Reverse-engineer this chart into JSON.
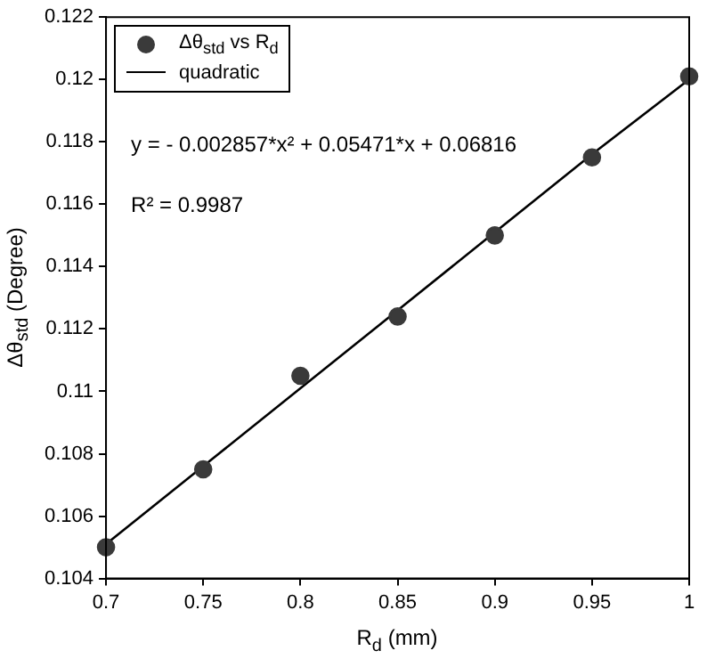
{
  "chart_data": {
    "type": "scatter",
    "xlabel": "R$_{d}$ (mm)",
    "ylabel": "Δθ$_{std}$  (Degree)",
    "x": [
      0.7,
      0.75,
      0.8,
      0.85,
      0.9,
      0.95,
      1.0
    ],
    "series": [
      {
        "name": "Δθ$_{std}$ vs R$_{d}$",
        "color": "#3a3a3a",
        "marker": "circle",
        "values": [
          0.105,
          0.1075,
          0.1105,
          0.1124,
          0.115,
          0.1175,
          0.1201
        ]
      },
      {
        "name": "quadratic",
        "type": "line",
        "color": "#000000",
        "marker": "none",
        "line_style": "solid",
        "values": [
          0.1051,
          0.1076,
          0.1101,
          0.1126,
          0.1151,
          0.1176,
          0.12
        ]
      }
    ],
    "xlim": [
      0.7,
      1
    ],
    "xticks": [
      0.7,
      0.75,
      0.8,
      0.85,
      0.9,
      0.95,
      1
    ],
    "ylim": [
      0.104,
      0.122
    ],
    "yticks": [
      0.104,
      0.106,
      0.108,
      0.11,
      0.112,
      0.114,
      0.116,
      0.118,
      0.12,
      0.122
    ],
    "grid": false,
    "legend": "top left",
    "annotations": [
      "y = - 0.002857*x² + 0.05471*x + 0.06816",
      "R² = 0.9987"
    ]
  }
}
